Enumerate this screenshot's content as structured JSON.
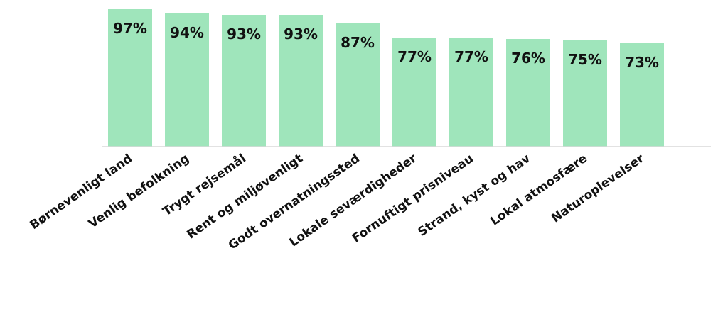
{
  "chart_data": {
    "type": "bar",
    "categories": [
      "Børnevenligt land",
      "Venlig befolkning",
      "Trygt rejsemål",
      "Rent og miljøvenligt",
      "Godt overnatningssted",
      "Lokale seværdigheder",
      "Fornuftigt prisniveau",
      "Strand, kyst og hav",
      "Lokal atmosfære",
      "Naturoplevelser"
    ],
    "values": [
      97,
      94,
      93,
      93,
      87,
      77,
      77,
      76,
      75,
      73
    ],
    "data_labels": [
      "97%",
      "94%",
      "93%",
      "93%",
      "87%",
      "77%",
      "77%",
      "76%",
      "75%",
      "73%"
    ],
    "value_unit": "%",
    "title": "",
    "xlabel": "",
    "ylabel": "",
    "ylim": [
      0,
      100
    ],
    "grid": false,
    "legend": "none",
    "colors": {
      "bar": "#9fe5bb",
      "label_text": "#111111",
      "axis": "#d9d9d9"
    }
  }
}
